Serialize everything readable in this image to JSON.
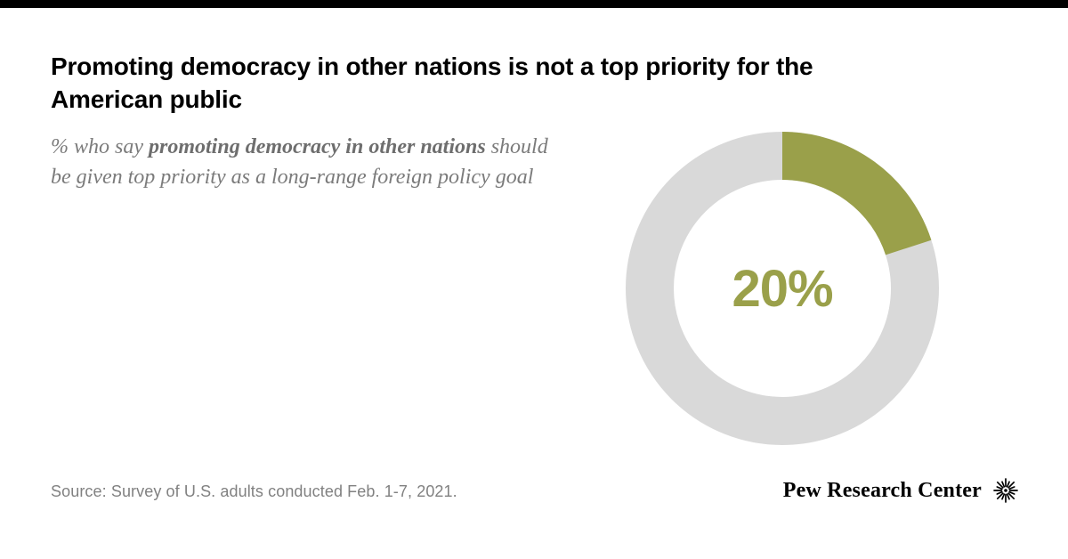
{
  "colors": {
    "accent": "#9aa04a",
    "ring": "#d9d9d9",
    "title": "#000000",
    "subtitle_text": "#7b7b7b",
    "source_text": "#818181",
    "top_bar": "#000000"
  },
  "header": {
    "title": "Promoting democracy in other nations is not a top priority for the American public",
    "subtitle_prefix": "% who say ",
    "subtitle_bold": "promoting democracy in other nations",
    "subtitle_suffix": " should be given top priority as a long-range foreign policy goal"
  },
  "chart_data": {
    "type": "pie",
    "subtype": "donut",
    "title": "Promoting democracy in other nations is not a top priority for the American public",
    "categories": [
      "Say promoting democracy should be given top priority",
      "Remainder"
    ],
    "values": [
      20,
      80
    ],
    "colors": [
      "#9aa04a",
      "#d9d9d9"
    ],
    "center_label": "20%",
    "start_angle_deg": -90,
    "direction": "clockwise",
    "legend": "none"
  },
  "footer": {
    "source": "Source: Survey of U.S. adults conducted Feb. 1-7, 2021.",
    "brand": "Pew Research Center"
  }
}
